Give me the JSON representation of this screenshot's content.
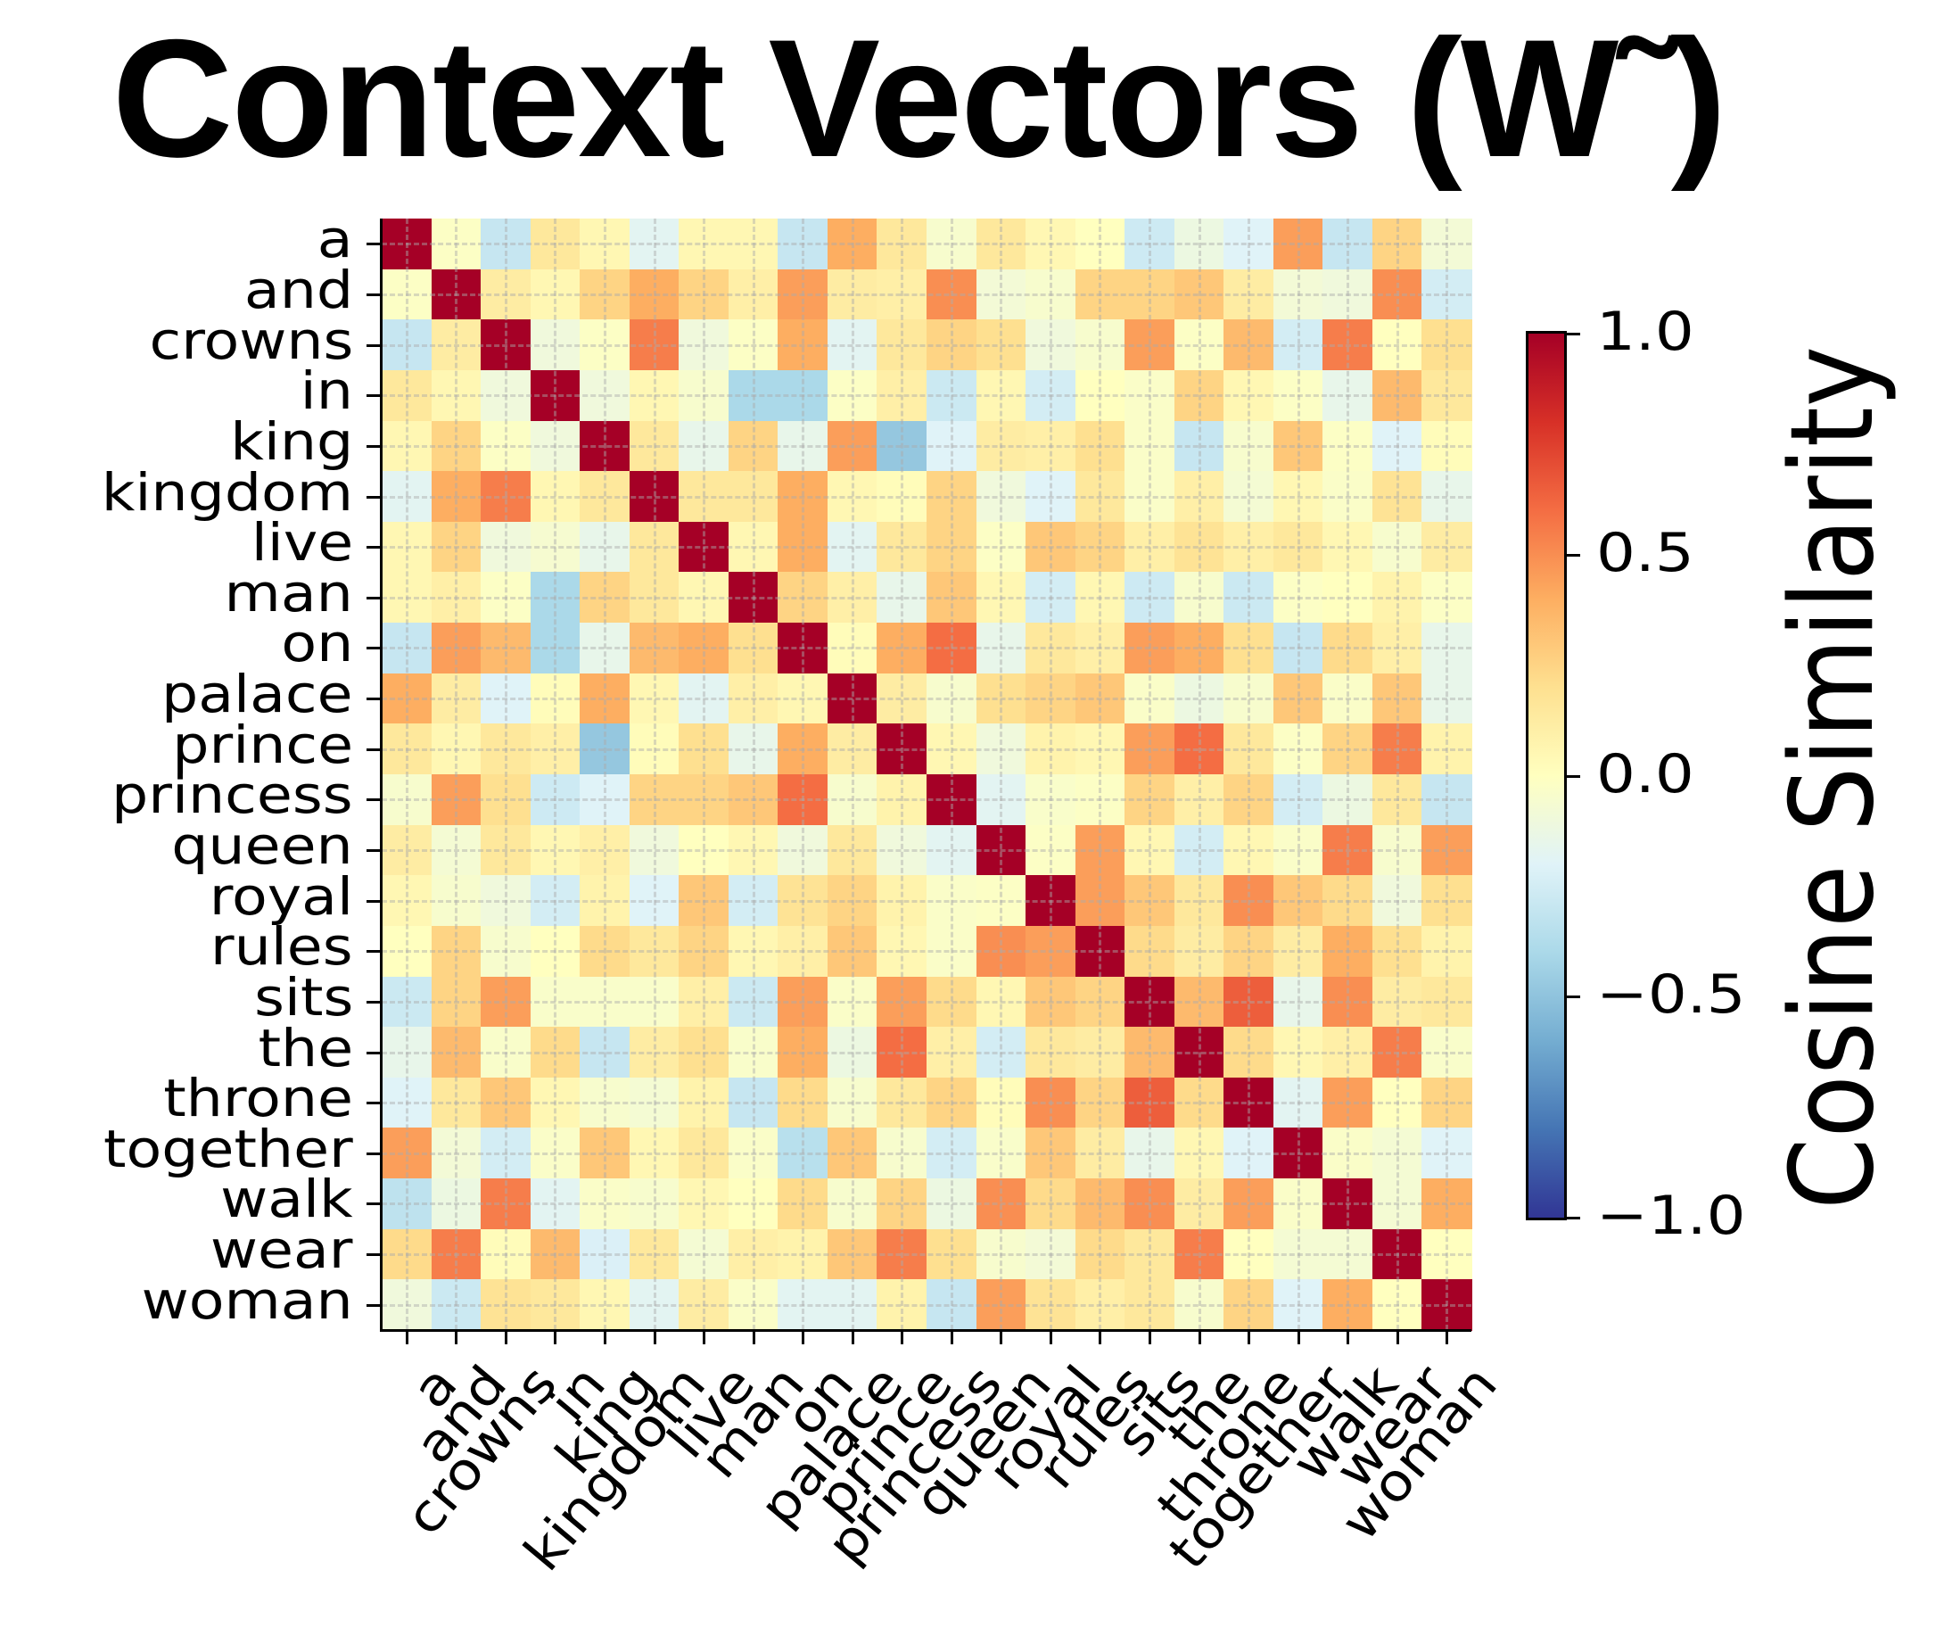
{
  "title": "Context Vectors (W˜)",
  "colorbar": {
    "label": "Cosine Similarity",
    "ticks": [
      "1.0",
      "0.5",
      "0.0",
      "−0.5",
      "−1.0"
    ],
    "tick_values": [
      1.0,
      0.5,
      0.0,
      -0.5,
      -1.0
    ],
    "colormap": "RdYlBu_r",
    "range": [
      -1.0,
      1.0
    ]
  },
  "chart_data": {
    "type": "heatmap",
    "title": "Context Vectors (W˜)",
    "xlabel": "",
    "ylabel": "",
    "colorbar_label": "Cosine Similarity",
    "vmin": -1.0,
    "vmax": 1.0,
    "colormap": "RdYlBu_r",
    "grid": true,
    "x_labels": [
      "a",
      "and",
      "crowns",
      "in",
      "king",
      "kingdom",
      "live",
      "man",
      "on",
      "palace",
      "prince",
      "princess",
      "queen",
      "royal",
      "rules",
      "sits",
      "the",
      "throne",
      "together",
      "walk",
      "wear",
      "woman"
    ],
    "y_labels": [
      "a",
      "and",
      "crowns",
      "in",
      "king",
      "kingdom",
      "live",
      "man",
      "on",
      "palace",
      "prince",
      "princess",
      "queen",
      "royal",
      "rules",
      "sits",
      "the",
      "throne",
      "together",
      "walk",
      "wear",
      "woman"
    ],
    "values": [
      [
        1.0,
        -0.02,
        -0.3,
        0.15,
        0.05,
        -0.18,
        0.05,
        0.05,
        -0.3,
        0.4,
        0.15,
        -0.05,
        0.15,
        0.05,
        0.0,
        -0.27,
        -0.12,
        -0.2,
        0.45,
        -0.3,
        0.25,
        -0.08
      ],
      [
        -0.02,
        1.0,
        0.12,
        0.05,
        0.25,
        0.4,
        0.25,
        0.1,
        0.45,
        0.12,
        0.1,
        0.5,
        -0.08,
        -0.05,
        0.25,
        0.25,
        0.3,
        0.12,
        -0.08,
        -0.1,
        0.5,
        -0.25
      ],
      [
        -0.3,
        0.12,
        1.0,
        -0.1,
        -0.02,
        0.55,
        -0.1,
        -0.02,
        0.4,
        -0.18,
        0.15,
        0.25,
        0.2,
        -0.1,
        -0.05,
        0.45,
        -0.02,
        0.35,
        -0.25,
        0.55,
        0.0,
        0.2
      ],
      [
        0.15,
        0.05,
        -0.1,
        1.0,
        -0.1,
        0.05,
        -0.05,
        -0.4,
        -0.4,
        -0.02,
        0.1,
        -0.28,
        0.05,
        -0.25,
        0.0,
        -0.03,
        0.25,
        0.05,
        -0.02,
        -0.15,
        0.35,
        0.15
      ],
      [
        0.05,
        0.25,
        -0.02,
        -0.1,
        1.0,
        0.15,
        -0.15,
        0.25,
        -0.15,
        0.45,
        -0.48,
        -0.2,
        0.12,
        0.1,
        0.2,
        -0.03,
        -0.3,
        -0.05,
        0.3,
        -0.02,
        -0.2,
        0.02
      ],
      [
        -0.18,
        0.4,
        0.55,
        0.05,
        0.15,
        1.0,
        0.15,
        0.15,
        0.4,
        0.05,
        0.02,
        0.25,
        -0.1,
        -0.2,
        0.15,
        -0.03,
        0.1,
        -0.07,
        0.05,
        -0.03,
        0.18,
        -0.15
      ],
      [
        0.05,
        0.25,
        -0.1,
        -0.06,
        -0.15,
        0.15,
        1.0,
        0.05,
        0.4,
        -0.18,
        0.15,
        0.25,
        -0.02,
        0.3,
        0.25,
        0.1,
        0.18,
        0.1,
        0.15,
        0.05,
        -0.05,
        0.12
      ],
      [
        0.05,
        0.1,
        -0.02,
        -0.4,
        0.25,
        0.15,
        0.05,
        1.0,
        0.25,
        0.1,
        -0.15,
        0.3,
        0.05,
        -0.25,
        0.05,
        -0.27,
        -0.05,
        -0.28,
        -0.02,
        0.0,
        0.08,
        -0.02
      ],
      [
        -0.3,
        0.45,
        0.35,
        -0.4,
        -0.15,
        0.35,
        0.4,
        0.2,
        1.0,
        0.02,
        0.4,
        0.6,
        -0.15,
        0.15,
        0.1,
        0.45,
        0.4,
        0.2,
        -0.3,
        0.22,
        0.1,
        -0.15
      ],
      [
        0.4,
        0.12,
        -0.2,
        0.02,
        0.4,
        0.05,
        -0.18,
        0.1,
        0.05,
        1.0,
        0.12,
        -0.05,
        0.2,
        0.25,
        0.3,
        -0.03,
        -0.12,
        -0.05,
        0.3,
        -0.03,
        0.3,
        -0.15
      ],
      [
        0.15,
        0.05,
        0.15,
        0.1,
        -0.48,
        0.02,
        0.2,
        -0.15,
        0.4,
        0.12,
        1.0,
        0.05,
        -0.1,
        0.08,
        0.05,
        0.45,
        0.6,
        0.15,
        -0.02,
        0.25,
        0.55,
        0.08
      ],
      [
        -0.05,
        0.45,
        0.2,
        -0.27,
        -0.2,
        0.25,
        0.25,
        0.3,
        0.6,
        -0.05,
        0.08,
        1.0,
        -0.18,
        -0.04,
        -0.02,
        0.25,
        0.1,
        0.25,
        -0.25,
        -0.12,
        0.15,
        -0.3
      ],
      [
        0.12,
        -0.07,
        0.15,
        0.05,
        0.1,
        -0.1,
        0.0,
        0.05,
        -0.1,
        0.15,
        -0.1,
        -0.18,
        1.0,
        -0.02,
        0.45,
        0.05,
        -0.25,
        0.05,
        -0.03,
        0.55,
        -0.05,
        0.45
      ],
      [
        0.05,
        -0.05,
        -0.1,
        -0.25,
        0.08,
        -0.2,
        0.3,
        -0.25,
        0.18,
        0.25,
        0.08,
        -0.03,
        -0.02,
        1.0,
        0.45,
        0.3,
        0.15,
        0.5,
        0.3,
        0.22,
        -0.1,
        0.2
      ],
      [
        0.0,
        0.25,
        -0.05,
        0.0,
        0.22,
        0.15,
        0.25,
        0.05,
        0.1,
        0.3,
        0.05,
        -0.03,
        0.5,
        0.45,
        1.0,
        0.22,
        0.12,
        0.25,
        0.12,
        0.4,
        0.2,
        0.08
      ],
      [
        -0.28,
        0.25,
        0.45,
        -0.04,
        -0.04,
        -0.04,
        0.1,
        -0.28,
        0.45,
        -0.03,
        0.45,
        0.22,
        0.05,
        0.3,
        0.25,
        1.0,
        0.35,
        0.65,
        -0.15,
        0.5,
        0.12,
        0.15
      ],
      [
        -0.15,
        0.35,
        -0.04,
        0.22,
        -0.3,
        0.12,
        0.2,
        -0.04,
        0.4,
        -0.12,
        0.6,
        0.1,
        -0.25,
        0.15,
        0.12,
        0.35,
        1.0,
        0.22,
        0.05,
        0.1,
        0.55,
        -0.04
      ],
      [
        -0.2,
        0.15,
        0.3,
        0.05,
        -0.05,
        -0.07,
        0.08,
        -0.3,
        0.22,
        -0.05,
        0.15,
        0.25,
        0.02,
        0.5,
        0.25,
        0.65,
        0.22,
        1.0,
        -0.18,
        0.45,
        0.0,
        0.25
      ],
      [
        0.45,
        -0.08,
        -0.25,
        -0.03,
        0.3,
        0.05,
        0.15,
        -0.03,
        -0.35,
        0.3,
        -0.05,
        -0.25,
        -0.04,
        0.3,
        0.12,
        -0.15,
        0.05,
        -0.2,
        1.0,
        -0.03,
        -0.07,
        -0.2
      ],
      [
        -0.33,
        -0.12,
        0.55,
        -0.18,
        -0.03,
        -0.05,
        0.05,
        0.0,
        0.22,
        -0.05,
        0.25,
        -0.12,
        0.5,
        0.22,
        0.35,
        0.5,
        0.12,
        0.45,
        -0.03,
        1.0,
        -0.07,
        0.4
      ],
      [
        0.22,
        0.55,
        0.02,
        0.35,
        -0.22,
        0.15,
        -0.07,
        0.1,
        0.08,
        0.3,
        0.55,
        0.2,
        -0.05,
        -0.08,
        0.22,
        0.15,
        0.55,
        0.0,
        -0.07,
        -0.07,
        1.0,
        0.0
      ],
      [
        -0.1,
        -0.28,
        0.18,
        0.15,
        0.05,
        -0.18,
        0.12,
        -0.03,
        -0.18,
        -0.18,
        0.08,
        -0.3,
        0.45,
        0.18,
        0.1,
        0.15,
        -0.05,
        0.25,
        -0.2,
        0.4,
        0.0,
        1.0
      ]
    ]
  }
}
